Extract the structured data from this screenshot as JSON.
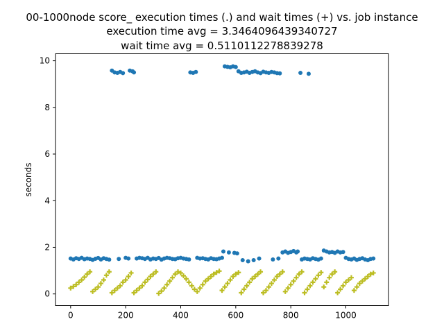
{
  "chart_data": {
    "type": "scatter",
    "title_lines": [
      "00-1000node score_ execution times (.) and wait times (+) vs. job instance",
      "execution time avg = 3.3464096439340727",
      "wait time avg = 0.5110112278839278"
    ],
    "xlabel": "",
    "ylabel": "seconds",
    "xlim": [
      -55,
      1155
    ],
    "ylim": [
      -0.5,
      10.3
    ],
    "xticks": [
      0,
      200,
      400,
      600,
      800,
      1000
    ],
    "yticks": [
      0,
      2,
      4,
      6,
      8,
      10
    ],
    "grid": false,
    "colors": {
      "execution": "#1f77b4",
      "wait": "#bcbd22"
    },
    "series": [
      {
        "marker": "dot",
        "points": [
          [
            0,
            1.52
          ],
          [
            10,
            1.48
          ],
          [
            20,
            1.53
          ],
          [
            30,
            1.5
          ],
          [
            40,
            1.55
          ],
          [
            50,
            1.49
          ],
          [
            60,
            1.52
          ],
          [
            70,
            1.5
          ],
          [
            80,
            1.46
          ],
          [
            90,
            1.51
          ],
          [
            100,
            1.54
          ],
          [
            110,
            1.48
          ],
          [
            120,
            1.53
          ],
          [
            130,
            1.5
          ],
          [
            140,
            1.47
          ],
          [
            150,
            9.58
          ],
          [
            160,
            9.5
          ],
          [
            170,
            9.48
          ],
          [
            175,
            1.5
          ],
          [
            180,
            9.52
          ],
          [
            190,
            9.47
          ],
          [
            200,
            1.55
          ],
          [
            210,
            1.52
          ],
          [
            215,
            9.58
          ],
          [
            225,
            9.55
          ],
          [
            230,
            9.5
          ],
          [
            240,
            1.52
          ],
          [
            250,
            1.55
          ],
          [
            260,
            1.53
          ],
          [
            270,
            1.5
          ],
          [
            280,
            1.55
          ],
          [
            290,
            1.48
          ],
          [
            300,
            1.52
          ],
          [
            310,
            1.5
          ],
          [
            320,
            1.54
          ],
          [
            330,
            1.47
          ],
          [
            340,
            1.52
          ],
          [
            350,
            1.55
          ],
          [
            360,
            1.53
          ],
          [
            370,
            1.5
          ],
          [
            380,
            1.49
          ],
          [
            390,
            1.53
          ],
          [
            400,
            1.55
          ],
          [
            410,
            1.52
          ],
          [
            420,
            1.5
          ],
          [
            430,
            1.48
          ],
          [
            435,
            9.5
          ],
          [
            445,
            9.48
          ],
          [
            455,
            9.52
          ],
          [
            460,
            1.55
          ],
          [
            470,
            1.52
          ],
          [
            480,
            1.53
          ],
          [
            490,
            1.5
          ],
          [
            500,
            1.48
          ],
          [
            510,
            1.53
          ],
          [
            520,
            1.5
          ],
          [
            530,
            1.49
          ],
          [
            540,
            1.52
          ],
          [
            550,
            1.55
          ],
          [
            555,
            1.82
          ],
          [
            560,
            9.76
          ],
          [
            570,
            9.74
          ],
          [
            575,
            1.78
          ],
          [
            580,
            9.72
          ],
          [
            590,
            9.76
          ],
          [
            595,
            1.76
          ],
          [
            600,
            9.73
          ],
          [
            605,
            1.74
          ],
          [
            610,
            9.55
          ],
          [
            620,
            9.48
          ],
          [
            625,
            1.45
          ],
          [
            630,
            9.5
          ],
          [
            640,
            9.53
          ],
          [
            645,
            1.4
          ],
          [
            650,
            9.48
          ],
          [
            660,
            9.52
          ],
          [
            665,
            1.45
          ],
          [
            670,
            9.55
          ],
          [
            680,
            9.5
          ],
          [
            685,
            1.52
          ],
          [
            690,
            9.47
          ],
          [
            700,
            9.53
          ],
          [
            710,
            9.5
          ],
          [
            720,
            9.48
          ],
          [
            730,
            9.52
          ],
          [
            735,
            1.48
          ],
          [
            740,
            9.5
          ],
          [
            750,
            9.47
          ],
          [
            755,
            1.52
          ],
          [
            760,
            9.46
          ],
          [
            770,
            1.78
          ],
          [
            780,
            1.82
          ],
          [
            790,
            1.76
          ],
          [
            800,
            1.8
          ],
          [
            810,
            1.84
          ],
          [
            820,
            1.78
          ],
          [
            825,
            1.82
          ],
          [
            835,
            9.48
          ],
          [
            840,
            1.48
          ],
          [
            850,
            1.52
          ],
          [
            860,
            1.5
          ],
          [
            865,
            9.44
          ],
          [
            870,
            1.48
          ],
          [
            880,
            1.53
          ],
          [
            890,
            1.5
          ],
          [
            900,
            1.47
          ],
          [
            910,
            1.52
          ],
          [
            920,
            1.86
          ],
          [
            930,
            1.82
          ],
          [
            940,
            1.78
          ],
          [
            950,
            1.8
          ],
          [
            960,
            1.76
          ],
          [
            970,
            1.82
          ],
          [
            980,
            1.78
          ],
          [
            990,
            1.8
          ],
          [
            1000,
            1.55
          ],
          [
            1010,
            1.5
          ],
          [
            1020,
            1.48
          ],
          [
            1030,
            1.52
          ],
          [
            1040,
            1.46
          ],
          [
            1050,
            1.5
          ],
          [
            1060,
            1.53
          ],
          [
            1070,
            1.48
          ],
          [
            1080,
            1.45
          ],
          [
            1090,
            1.5
          ],
          [
            1100,
            1.52
          ]
        ]
      },
      {
        "marker": "plus",
        "points": [
          [
            0,
            0.25
          ],
          [
            10,
            0.32
          ],
          [
            20,
            0.4
          ],
          [
            30,
            0.5
          ],
          [
            40,
            0.6
          ],
          [
            50,
            0.72
          ],
          [
            60,
            0.85
          ],
          [
            70,
            0.95
          ],
          [
            80,
            0.1
          ],
          [
            90,
            0.2
          ],
          [
            100,
            0.3
          ],
          [
            110,
            0.45
          ],
          [
            120,
            0.6
          ],
          [
            130,
            0.8
          ],
          [
            140,
            0.95
          ],
          [
            150,
            0.05
          ],
          [
            160,
            0.15
          ],
          [
            170,
            0.25
          ],
          [
            180,
            0.35
          ],
          [
            190,
            0.5
          ],
          [
            200,
            0.6
          ],
          [
            210,
            0.75
          ],
          [
            220,
            0.9
          ],
          [
            230,
            0.05
          ],
          [
            240,
            0.15
          ],
          [
            250,
            0.25
          ],
          [
            260,
            0.35
          ],
          [
            270,
            0.5
          ],
          [
            280,
            0.62
          ],
          [
            290,
            0.75
          ],
          [
            300,
            0.85
          ],
          [
            310,
            0.95
          ],
          [
            320,
            0.02
          ],
          [
            330,
            0.12
          ],
          [
            340,
            0.25
          ],
          [
            350,
            0.4
          ],
          [
            360,
            0.55
          ],
          [
            370,
            0.7
          ],
          [
            380,
            0.85
          ],
          [
            390,
            0.95
          ],
          [
            400,
            0.9
          ],
          [
            410,
            0.78
          ],
          [
            420,
            0.65
          ],
          [
            430,
            0.5
          ],
          [
            440,
            0.35
          ],
          [
            450,
            0.2
          ],
          [
            460,
            0.1
          ],
          [
            470,
            0.25
          ],
          [
            480,
            0.4
          ],
          [
            490,
            0.55
          ],
          [
            500,
            0.65
          ],
          [
            510,
            0.75
          ],
          [
            520,
            0.85
          ],
          [
            530,
            0.92
          ],
          [
            540,
            0.98
          ],
          [
            550,
            0.15
          ],
          [
            560,
            0.3
          ],
          [
            570,
            0.45
          ],
          [
            580,
            0.6
          ],
          [
            590,
            0.75
          ],
          [
            600,
            0.85
          ],
          [
            610,
            0.92
          ],
          [
            620,
            0.05
          ],
          [
            630,
            0.2
          ],
          [
            640,
            0.35
          ],
          [
            650,
            0.5
          ],
          [
            660,
            0.65
          ],
          [
            670,
            0.75
          ],
          [
            680,
            0.85
          ],
          [
            690,
            0.95
          ],
          [
            700,
            0.05
          ],
          [
            710,
            0.15
          ],
          [
            720,
            0.3
          ],
          [
            730,
            0.45
          ],
          [
            740,
            0.6
          ],
          [
            750,
            0.75
          ],
          [
            760,
            0.85
          ],
          [
            770,
            0.95
          ],
          [
            780,
            0.1
          ],
          [
            790,
            0.25
          ],
          [
            800,
            0.4
          ],
          [
            810,
            0.55
          ],
          [
            820,
            0.7
          ],
          [
            830,
            0.85
          ],
          [
            840,
            0.95
          ],
          [
            850,
            0.05
          ],
          [
            860,
            0.2
          ],
          [
            870,
            0.35
          ],
          [
            880,
            0.5
          ],
          [
            890,
            0.65
          ],
          [
            900,
            0.8
          ],
          [
            910,
            0.92
          ],
          [
            920,
            0.3
          ],
          [
            930,
            0.5
          ],
          [
            940,
            0.7
          ],
          [
            950,
            0.85
          ],
          [
            960,
            0.95
          ],
          [
            970,
            0.05
          ],
          [
            980,
            0.2
          ],
          [
            990,
            0.35
          ],
          [
            1000,
            0.5
          ],
          [
            1010,
            0.6
          ],
          [
            1020,
            0.7
          ],
          [
            1030,
            0.15
          ],
          [
            1040,
            0.3
          ],
          [
            1050,
            0.45
          ],
          [
            1060,
            0.55
          ],
          [
            1070,
            0.65
          ],
          [
            1080,
            0.75
          ],
          [
            1090,
            0.85
          ],
          [
            1100,
            0.9
          ]
        ]
      }
    ]
  }
}
